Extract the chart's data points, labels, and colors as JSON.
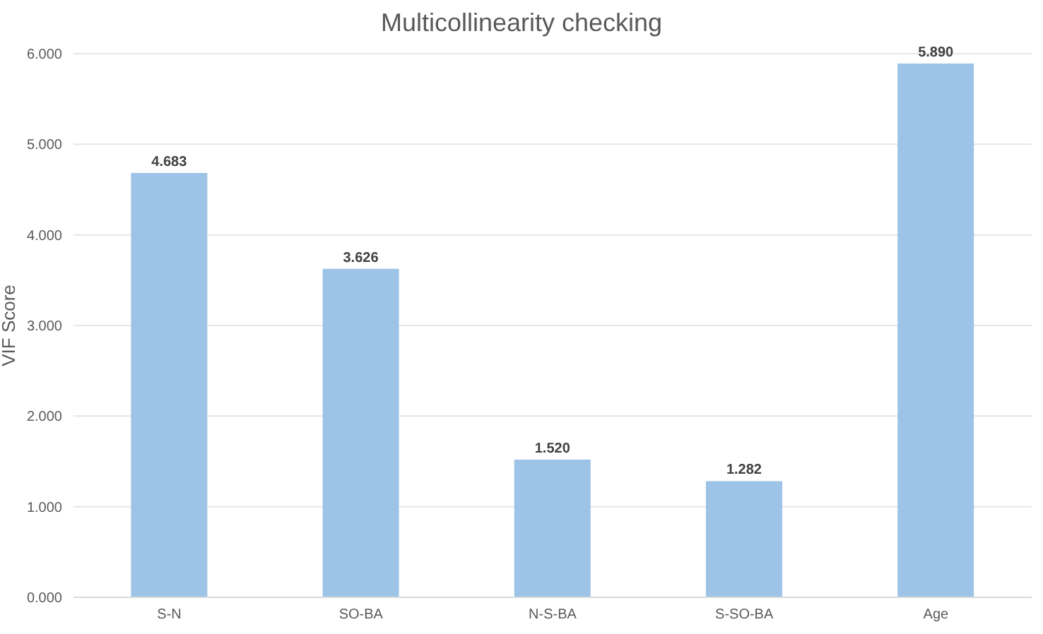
{
  "chart_data": {
    "type": "bar",
    "title": "Multicollinearity checking",
    "ylabel": "VIF Score",
    "categories": [
      "S-N",
      "SO-BA",
      "N-S-BA",
      "S-SO-BA",
      "Age"
    ],
    "values": [
      4.683,
      3.626,
      1.52,
      1.282,
      5.89
    ],
    "value_labels": [
      "4.683",
      "3.626",
      "1.520",
      "1.282",
      "5.890"
    ],
    "color": "#9dc3e6",
    "ylim": [
      0,
      6
    ],
    "yticks": [
      {
        "value": 0,
        "label": "0.000"
      },
      {
        "value": 1,
        "label": "1.000"
      },
      {
        "value": 2,
        "label": "2.000"
      },
      {
        "value": 3,
        "label": "3.000"
      },
      {
        "value": 4,
        "label": "4.000"
      },
      {
        "value": 5,
        "label": "5.000"
      },
      {
        "value": 6,
        "label": "6.000"
      }
    ],
    "grid": "y"
  }
}
